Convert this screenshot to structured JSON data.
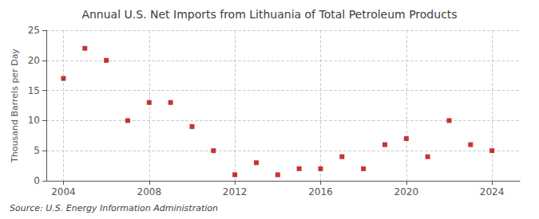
{
  "chart_data": {
    "type": "scatter",
    "title": "Annual U.S. Net Imports from Lithuania of Total Petroleum Products",
    "ylabel": "Thousand Barrels per Day",
    "annotation": "Source: U.S. Energy Information Administration",
    "x": [
      2004,
      2005,
      2006,
      2007,
      2008,
      2009,
      2010,
      2011,
      2012,
      2013,
      2014,
      2015,
      2016,
      2017,
      2018,
      2019,
      2020,
      2021,
      2022,
      2023,
      2024
    ],
    "values": [
      17,
      22,
      20,
      10,
      13,
      13,
      9,
      5,
      1,
      3,
      1,
      2,
      2,
      4,
      2,
      6,
      7,
      4,
      10,
      6,
      5
    ],
    "color": "#bb0000",
    "marker": "square",
    "xlim": [
      2003.2,
      2025.3
    ],
    "xticks": [
      2004,
      2008,
      2012,
      2016,
      2020,
      2024
    ],
    "ylim": [
      0,
      25
    ],
    "yticks": [
      0,
      5,
      10,
      15,
      20,
      25
    ],
    "grid": true
  }
}
